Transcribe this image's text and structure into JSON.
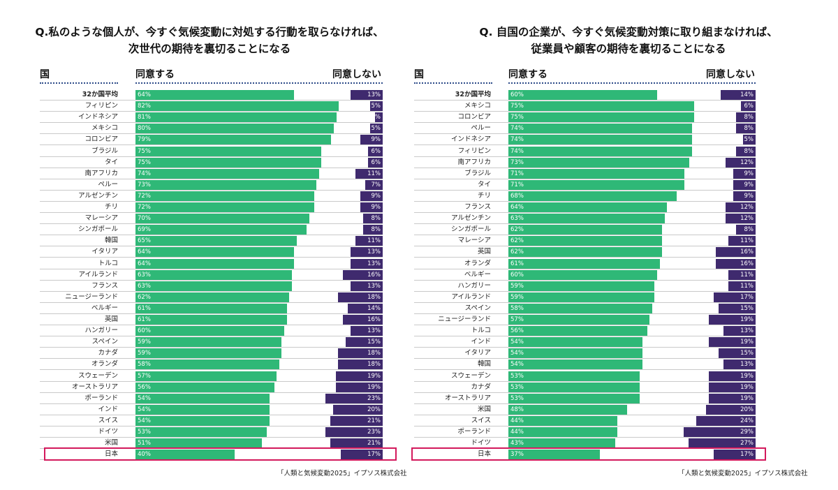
{
  "chart_data": [
    {
      "type": "bar",
      "title": [
        "Q.私のような個人が、今すぐ気候変動に対処する行動を取らなければ、",
        "次世代の期待を裏切ることになる"
      ],
      "column_headers": {
        "country": "国",
        "agree": "同意する",
        "disagree": "同意しない"
      },
      "categories": [
        "32か国平均",
        "フィリピン",
        "インドネシア",
        "メキシコ",
        "コロンビア",
        "ブラジル",
        "タイ",
        "南アフリカ",
        "ペルー",
        "アルゼンチン",
        "チリ",
        "マレーシア",
        "シンガポール",
        "韓国",
        "イタリア",
        "トルコ",
        "アイルランド",
        "フランス",
        "ニュージーランド",
        "ベルギー",
        "英国",
        "ハンガリー",
        "スペイン",
        "カナダ",
        "オランダ",
        "スウェーデン",
        "オーストラリア",
        "ポーランド",
        "インド",
        "スイス",
        "ドイツ",
        "米国",
        "日本"
      ],
      "series": [
        {
          "name": "同意する",
          "color": "#2fb877",
          "values": [
            64,
            82,
            81,
            80,
            79,
            75,
            75,
            74,
            73,
            72,
            72,
            70,
            69,
            65,
            64,
            64,
            63,
            63,
            62,
            61,
            61,
            60,
            59,
            59,
            58,
            57,
            56,
            54,
            54,
            54,
            53,
            51,
            40
          ]
        },
        {
          "name": "同意しない",
          "color": "#3f2a6e",
          "values": [
            13,
            5,
            3,
            5,
            9,
            6,
            6,
            11,
            7,
            9,
            9,
            8,
            8,
            11,
            13,
            13,
            16,
            13,
            18,
            14,
            16,
            13,
            15,
            18,
            18,
            19,
            19,
            23,
            20,
            21,
            23,
            21,
            17
          ]
        }
      ],
      "highlighted_category": "日本",
      "source": "「人類と気候変動2025」イプソス株式会社",
      "xlim": [
        0,
        100
      ]
    },
    {
      "type": "bar",
      "title": [
        "Q. 自国の企業が、今すぐ気候変動対策に取り組まなければ、",
        "従業員や顧客の期待を裏切ることになる"
      ],
      "column_headers": {
        "country": "国",
        "agree": "同意する",
        "disagree": "同意しない"
      },
      "categories": [
        "32か国平均",
        "メキシコ",
        "コロンビア",
        "ペルー",
        "インドネシア",
        "フィリピン",
        "南アフリカ",
        "ブラジル",
        "タイ",
        "チリ",
        "フランス",
        "アルゼンチン",
        "シンガポール",
        "マレーシア",
        "英国",
        "オランダ",
        "ベルギー",
        "ハンガリー",
        "アイルランド",
        "スペイン",
        "ニュージーランド",
        "トルコ",
        "インド",
        "イタリア",
        "韓国",
        "スウェーデン",
        "カナダ",
        "オーストラリア",
        "米国",
        "スイス",
        "ポーランド",
        "ドイツ",
        "日本"
      ],
      "series": [
        {
          "name": "同意する",
          "color": "#2fb877",
          "values": [
            60,
            75,
            75,
            74,
            74,
            74,
            73,
            71,
            71,
            68,
            64,
            63,
            62,
            62,
            62,
            61,
            60,
            59,
            59,
            58,
            57,
            56,
            54,
            54,
            54,
            53,
            53,
            53,
            48,
            44,
            44,
            43,
            37
          ]
        },
        {
          "name": "同意しない",
          "color": "#3f2a6e",
          "values": [
            14,
            6,
            8,
            8,
            5,
            8,
            12,
            9,
            9,
            9,
            12,
            12,
            8,
            11,
            16,
            16,
            11,
            11,
            17,
            15,
            19,
            13,
            19,
            15,
            13,
            19,
            19,
            19,
            20,
            24,
            29,
            27,
            17
          ]
        }
      ],
      "highlighted_category": "日本",
      "source": "「人類と気候変動2025」イプソス株式会社",
      "xlim": [
        0,
        100
      ]
    }
  ]
}
